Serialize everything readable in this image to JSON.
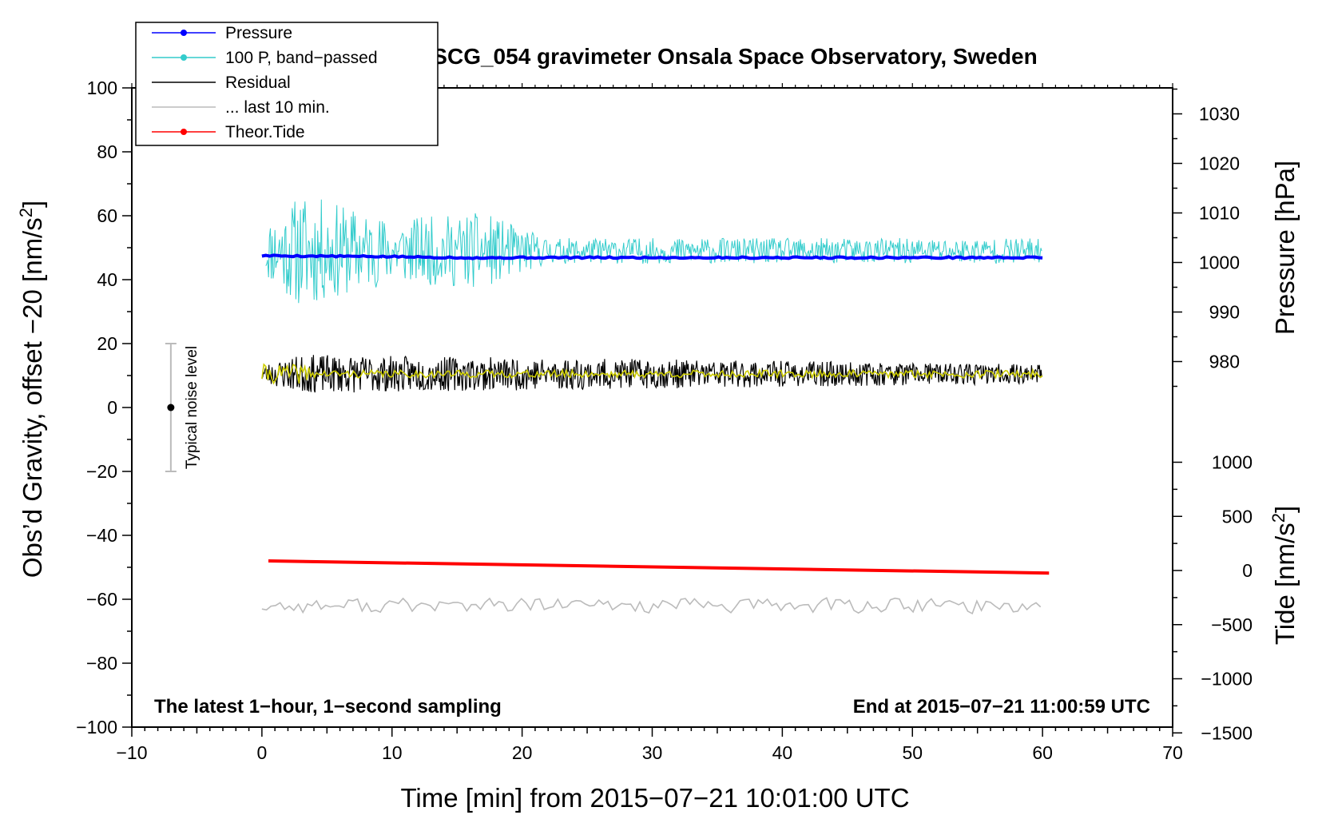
{
  "chart_data": {
    "type": "line",
    "title": "SCG_054 gravimeter Onsala Space Observatory, Sweden",
    "xlabel": "Time [min] from 2015−07−21 10:01:00 UTC",
    "ylabel_left": "Obs’d Gravity, offset −20 [nm/s",
    "ylabel_left_sup": "2",
    "ylabel_left_end": "]",
    "ylabel_right_pressure": "Pressure [hPa]",
    "ylabel_right_tide": "Tide [nm/s",
    "ylabel_right_tide_sup": "2",
    "ylabel_right_tide_end": "]",
    "xlim": [
      -10,
      70
    ],
    "ylim": [
      -100,
      100
    ],
    "x_ticks": [
      "−10",
      "0",
      "10",
      "20",
      "30",
      "40",
      "50",
      "60",
      "70"
    ],
    "y_ticks_left": [
      "100",
      "80",
      "60",
      "40",
      "20",
      "0",
      "−20",
      "−40",
      "−60",
      "−80",
      "−100"
    ],
    "pressure_axis": {
      "ticks": [
        "1030",
        "1020",
        "1010",
        "1000",
        "990",
        "980"
      ]
    },
    "tide_axis": {
      "ticks": [
        "1000",
        "500",
        "0",
        "−500",
        "−1000",
        "−1500"
      ]
    },
    "legend": [
      {
        "label": "Pressure",
        "color": "#0000ff",
        "marker": true
      },
      {
        "label": "100 P, band−passed",
        "color": "#33cccc",
        "marker": true
      },
      {
        "label": "Residual",
        "color": "#000000",
        "marker": false
      },
      {
        "label": "... last 10 min.",
        "color": "#bbbbbb",
        "marker": false
      },
      {
        "label": "Theor.Tide",
        "color": "#ff0000",
        "marker": true
      }
    ],
    "noise_label": "Typical noise level",
    "noise_bar": {
      "x": -7,
      "y_center": 0,
      "y_low": -20,
      "y_high": 20
    },
    "note_left": "The latest 1−hour, 1−second sampling",
    "note_right": "End at 2015−07−21 11:00:59 UTC",
    "series": [
      {
        "name": "Pressure",
        "color": "#0000ff",
        "x": [
          0,
          10,
          17,
          20,
          30,
          40,
          50,
          60
        ],
        "y": [
          47.5,
          47.2,
          46.8,
          46.9,
          46.9,
          46.9,
          46.9,
          46.9
        ]
      },
      {
        "name": "100 P, band−passed",
        "color": "#33cccc",
        "x": [
          0,
          60
        ],
        "y_center": 49,
        "amp_profile": [
          [
            0,
            8
          ],
          [
            3,
            18
          ],
          [
            10,
            10
          ],
          [
            17,
            12
          ],
          [
            22,
            4
          ],
          [
            60,
            4
          ]
        ]
      },
      {
        "name": "Residual",
        "color": "#000000",
        "x": [
          0,
          60
        ],
        "y_center": 10.5,
        "amp_profile": [
          [
            0,
            3
          ],
          [
            3,
            6
          ],
          [
            60,
            3
          ]
        ]
      },
      {
        "name": "Residual (smoothed)",
        "color": "#cccc00",
        "x": [
          0,
          60
        ],
        "y_center": 10.5
      },
      {
        "name": "... last 10 min.",
        "color": "#bbbbbb",
        "x": [
          0,
          60
        ],
        "y_center": -62,
        "amp_profile": [
          [
            0,
            3
          ],
          [
            60,
            3
          ]
        ]
      },
      {
        "name": "Theor.Tide",
        "color": "#ff0000",
        "x": [
          0.5,
          60.5
        ],
        "y": [
          -48,
          -51.8
        ]
      }
    ]
  }
}
